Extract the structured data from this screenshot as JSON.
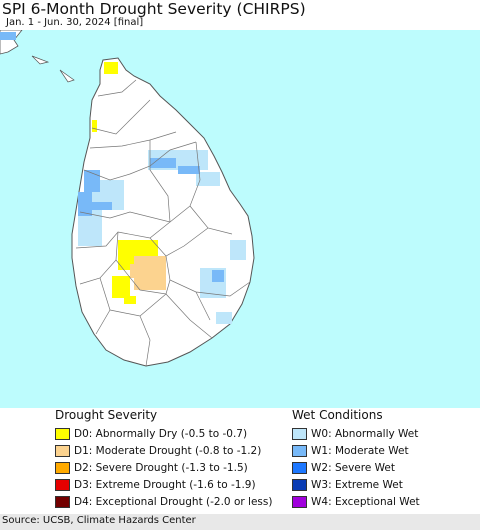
{
  "map": {
    "title": "SPI 6-Month Drought Severity (CHIRPS)",
    "subtitle": "Jan. 1 - Jun. 30, 2024 [final]",
    "colors": {
      "ocean": "#bdfcfd",
      "land": "#ffffff",
      "border": "#555555"
    }
  },
  "legend": {
    "drought_title": "Drought Severity",
    "wet_title": "Wet Conditions",
    "drought": [
      {
        "code": "D0:",
        "label": "Abnormally Dry (-0.5 to -0.7)",
        "color": "#ffff00"
      },
      {
        "code": "D1:",
        "label": "Moderate Drought (-0.8 to -1.2)",
        "color": "#fcd38f"
      },
      {
        "code": "D2:",
        "label": "Severe Drought (-1.3 to -1.5)",
        "color": "#ffaa00"
      },
      {
        "code": "D3:",
        "label": "Extreme Drought (-1.6 to -1.9)",
        "color": "#e60000"
      },
      {
        "code": "D4:",
        "label": "Exceptional Drought (-2.0 or less)",
        "color": "#730000"
      }
    ],
    "wet": [
      {
        "code": "W0:",
        "label": "Abnormally Wet",
        "color": "#bee6fa"
      },
      {
        "code": "W1:",
        "label": "Moderate Wet",
        "color": "#78b9f8"
      },
      {
        "code": "W2:",
        "label": "Severe Wet",
        "color": "#1e78ff"
      },
      {
        "code": "W3:",
        "label": "Extreme Wet",
        "color": "#0a3cb4"
      },
      {
        "code": "W4:",
        "label": "Exceptional Wet",
        "color": "#a000dc"
      }
    ]
  },
  "footer": {
    "source": "Source: UCSB, Climate Hazards Center"
  }
}
